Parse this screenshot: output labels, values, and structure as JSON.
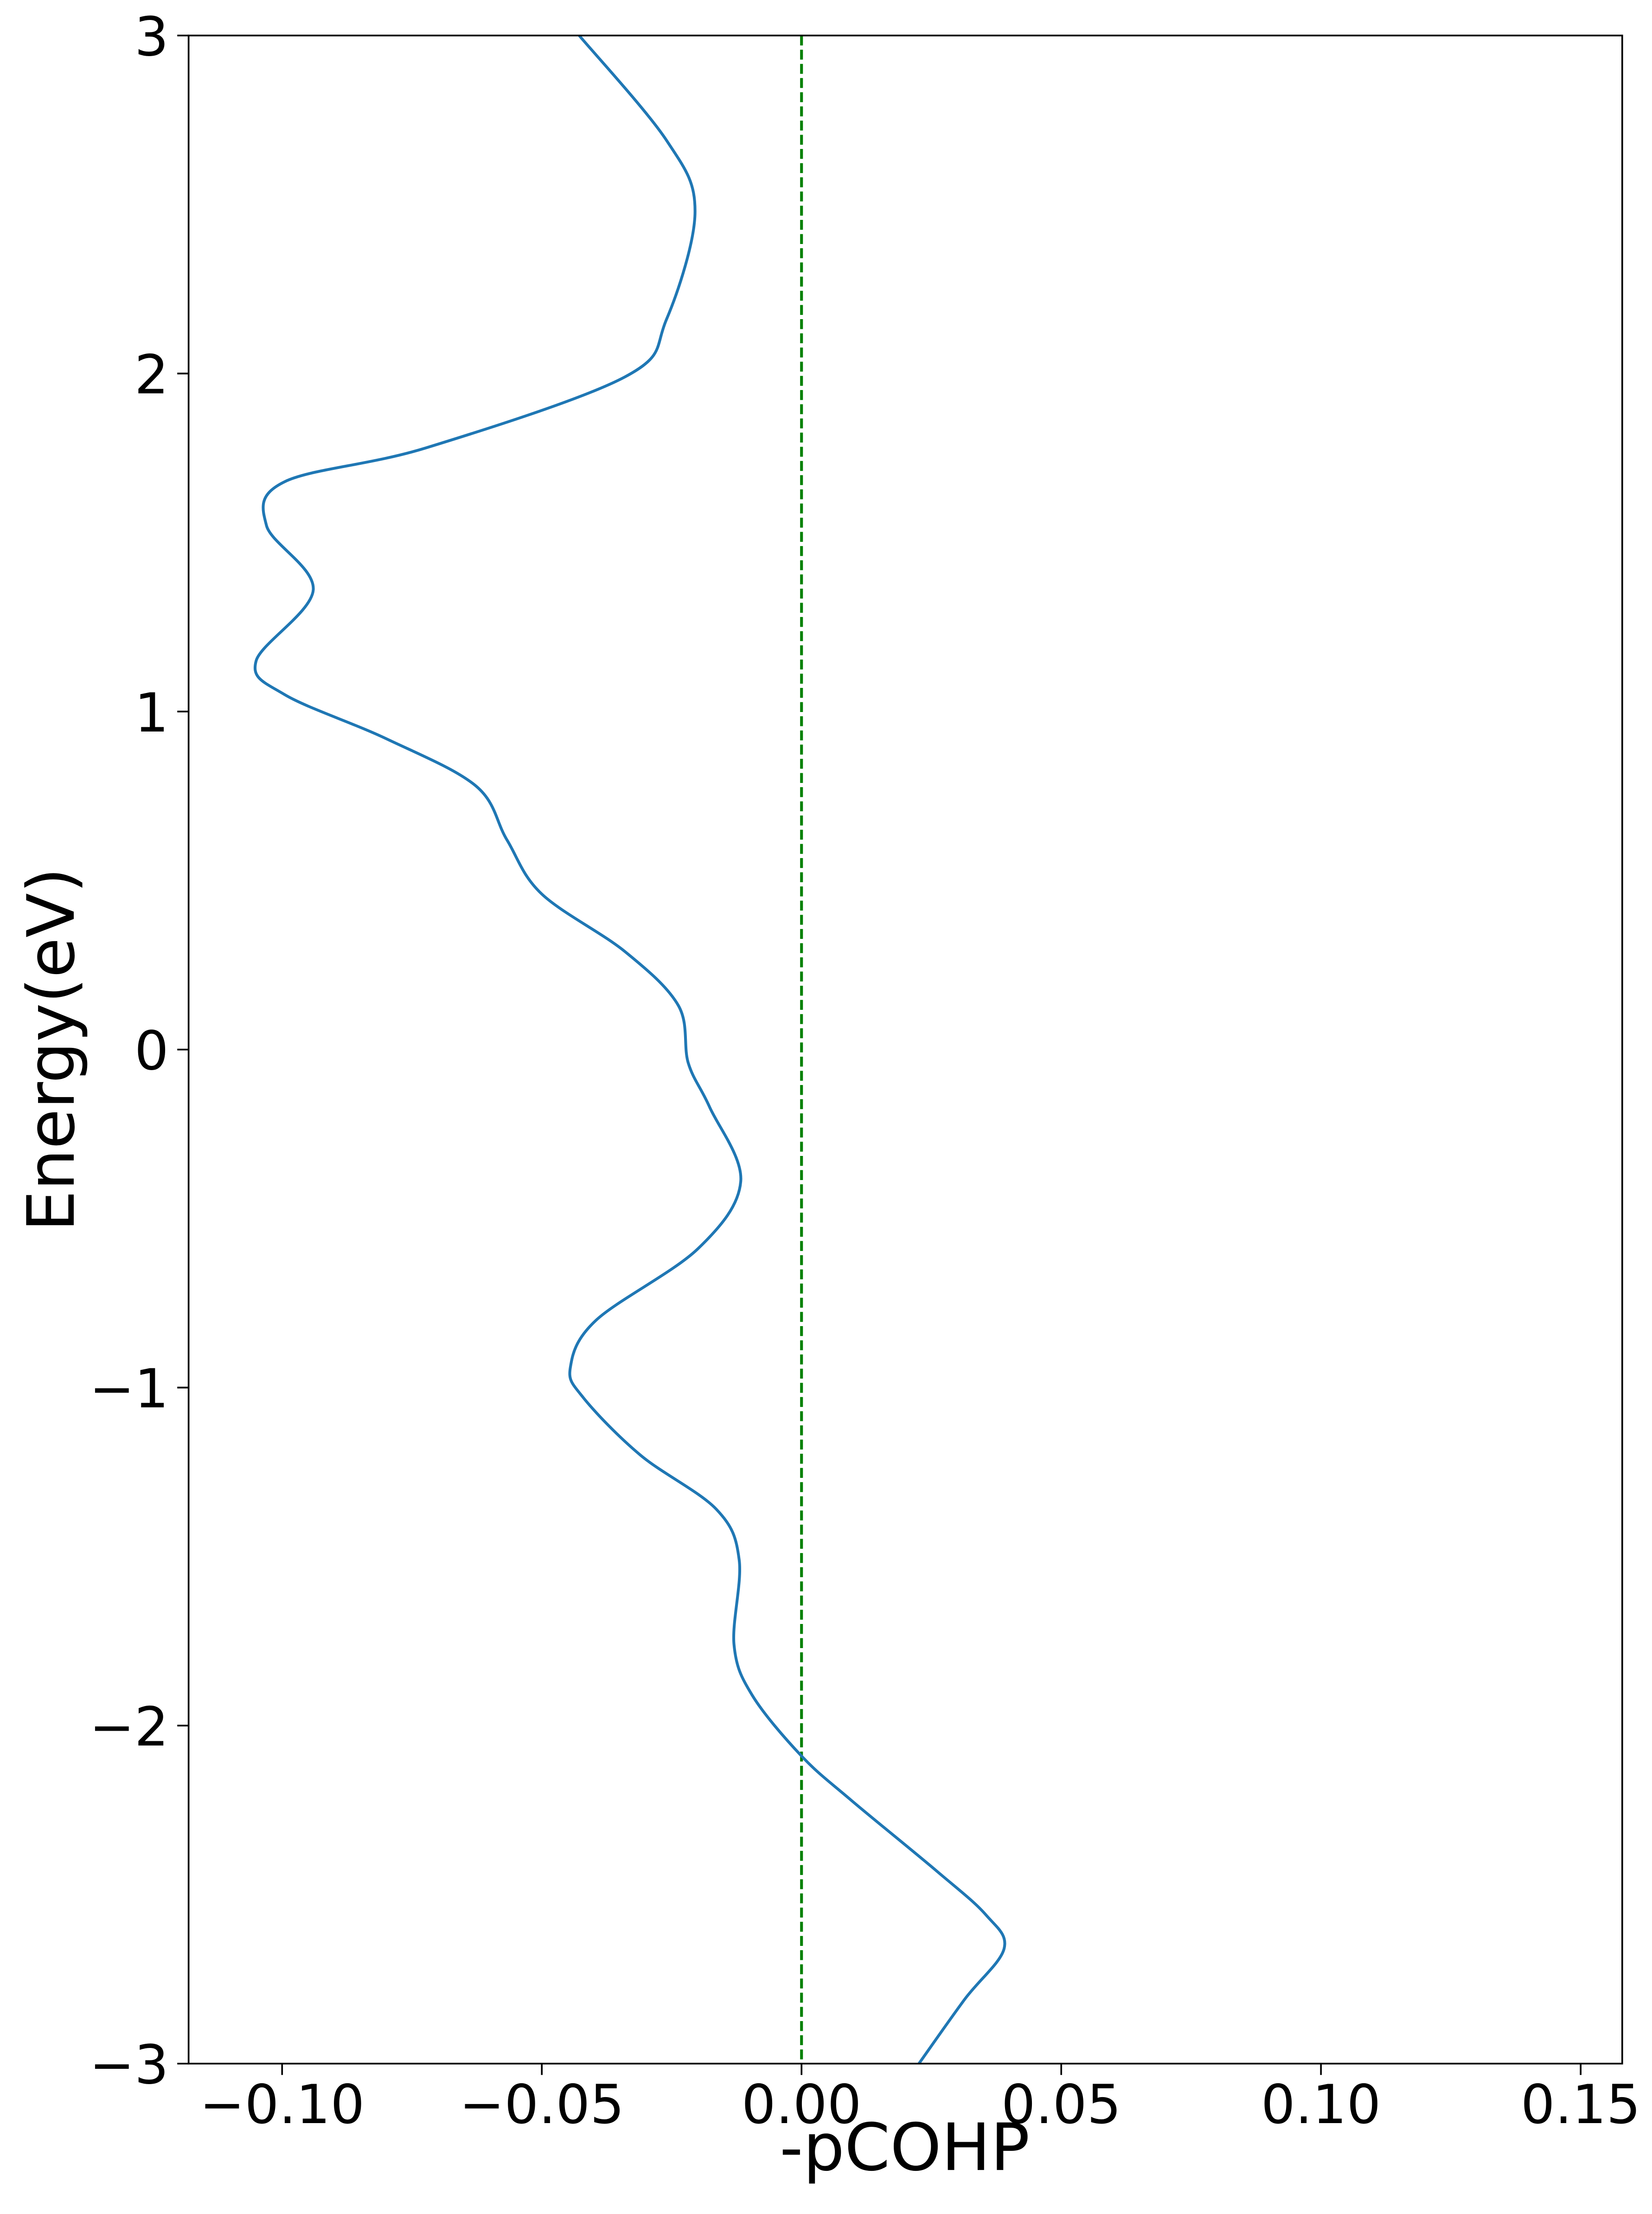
{
  "chart_data": {
    "type": "line",
    "xlabel": "-pCOHP",
    "ylabel": "Energy(eV)",
    "x": [
      -3.0,
      -2.81,
      -2.66,
      -2.56,
      -2.43,
      -2.22,
      -2.09,
      -1.91,
      -1.76,
      -1.51,
      -1.36,
      -1.2,
      -1.03,
      -0.94,
      -0.8,
      -0.59,
      -0.39,
      -0.17,
      -0.04,
      0.13,
      0.29,
      0.46,
      0.62,
      0.78,
      0.92,
      1.05,
      1.15,
      1.36,
      1.55,
      1.68,
      1.78,
      1.99,
      2.16,
      2.48,
      2.69,
      3.0
    ],
    "values": [
      0.0226,
      0.0314,
      0.039,
      0.0355,
      0.026,
      0.0095,
      0.0,
      -0.0095,
      -0.013,
      -0.012,
      -0.0164,
      -0.031,
      -0.042,
      -0.0445,
      -0.0395,
      -0.02,
      -0.0117,
      -0.0177,
      -0.0218,
      -0.0237,
      -0.034,
      -0.05,
      -0.0567,
      -0.0627,
      -0.08,
      -0.0995,
      -0.105,
      -0.094,
      -0.103,
      -0.0995,
      -0.0723,
      -0.034,
      -0.026,
      -0.0205,
      -0.026,
      -0.0428
    ],
    "color": "#1f77b4",
    "reference_line": {
      "value": 0,
      "color": "#008000"
    },
    "xlim": [
      -0.118,
      0.158
    ],
    "xticks": [
      {
        "value": -0.1,
        "label": "−0.10"
      },
      {
        "value": -0.05,
        "label": "−0.05"
      },
      {
        "value": 0,
        "label": "0.00"
      },
      0.05,
      {
        "value": 0.1,
        "label": "0.10"
      },
      0.15
    ],
    "ylim": [
      -3,
      3
    ],
    "yticks": [
      {
        "value": -3,
        "label": "−3"
      },
      {
        "value": -2,
        "label": "−2"
      },
      {
        "value": -1,
        "label": "−1"
      },
      0,
      1,
      2,
      3
    ]
  }
}
